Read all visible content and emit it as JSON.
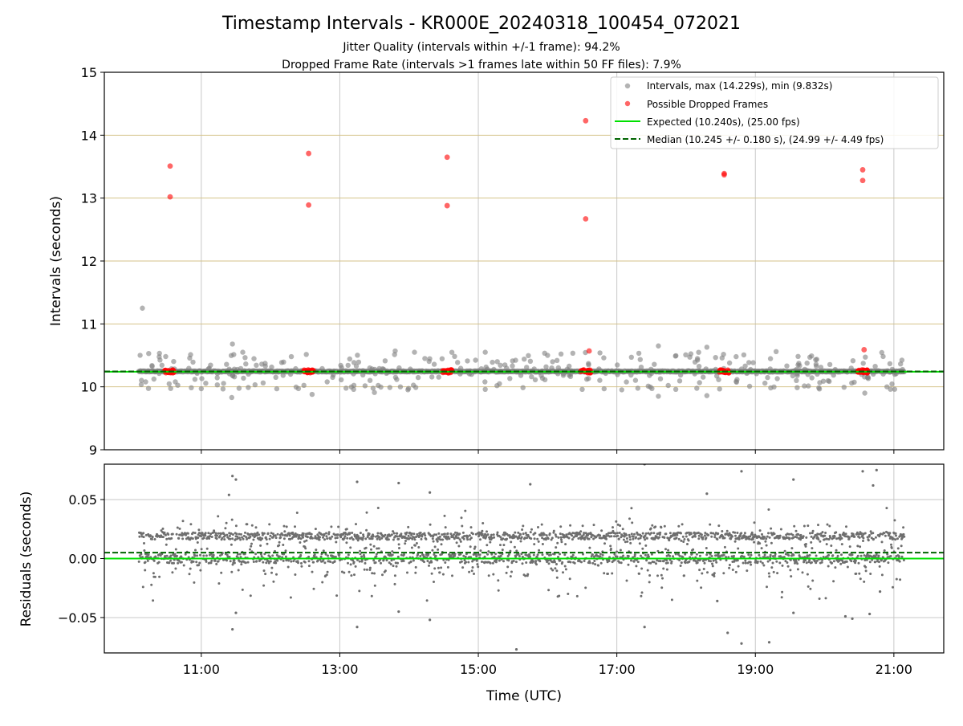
{
  "title": "Timestamp Intervals - KR000E_20240318_100454_072021",
  "subtitle_lines": [
    "Jitter Quality (intervals within +/-1 frame): 94.2%",
    "Dropped Frame Rate (intervals >1 frames late within 50 FF files): 7.9%"
  ],
  "colors": {
    "intervals": "#808080",
    "dropped": "#ff0000",
    "expected": "#00e000",
    "median": "#006400",
    "hgrid_top": "#d4c28a",
    "vgrid": "#c8c8c8",
    "residual_points": "#6e6e6e"
  },
  "chart_data": [
    {
      "type": "scatter",
      "ylabel": "Intervals (seconds)",
      "ylim": [
        9,
        15
      ],
      "yticks": [
        "9",
        "10",
        "11",
        "12",
        "13",
        "14",
        "15"
      ],
      "x_units": "hours UTC",
      "xlim": [
        9.6,
        21.72
      ],
      "legend_placement": "top-right",
      "legend": [
        "Intervals, max (14.229s), min (9.832s)",
        "Possible Dropped Frames",
        "Expected (10.240s), (25.00 fps)",
        "Median (10.245 +/- 0.180 s), (24.99 +/- 4.49 fps)"
      ],
      "expected_value": 10.24,
      "median_value": 10.245,
      "dropped_outliers": [
        {
          "x": 10.55,
          "y": 13.51
        },
        {
          "x": 10.55,
          "y": 13.02
        },
        {
          "x": 12.55,
          "y": 13.71
        },
        {
          "x": 12.55,
          "y": 12.89
        },
        {
          "x": 14.55,
          "y": 13.65
        },
        {
          "x": 14.55,
          "y": 12.88
        },
        {
          "x": 16.55,
          "y": 14.23
        },
        {
          "x": 16.55,
          "y": 12.67
        },
        {
          "x": 18.55,
          "y": 13.39
        },
        {
          "x": 18.55,
          "y": 13.37
        },
        {
          "x": 20.55,
          "y": 13.45
        },
        {
          "x": 20.55,
          "y": 13.28
        },
        {
          "x": 16.6,
          "y": 10.57
        },
        {
          "x": 20.57,
          "y": 10.59
        }
      ],
      "dropped_clusters": [
        10.47,
        12.48,
        14.48,
        16.48,
        18.48,
        20.48
      ],
      "interval_outliers": [
        {
          "x": 10.15,
          "y": 11.25
        },
        {
          "x": 11.45,
          "y": 10.68
        },
        {
          "x": 11.44,
          "y": 9.83
        },
        {
          "x": 13.8,
          "y": 10.57
        },
        {
          "x": 17.6,
          "y": 10.65
        },
        {
          "x": 18.3,
          "y": 10.63
        },
        {
          "x": 18.3,
          "y": 9.86
        },
        {
          "x": 13.2,
          "y": 9.96
        },
        {
          "x": 13.5,
          "y": 9.91
        },
        {
          "x": 17.6,
          "y": 9.85
        },
        {
          "x": 20.58,
          "y": 9.9
        },
        {
          "x": 15.1,
          "y": 10.55
        },
        {
          "x": 20.9,
          "y": 10.0
        },
        {
          "x": 12.3,
          "y": 10.48
        },
        {
          "x": 12.6,
          "y": 9.88
        },
        {
          "x": 16.0,
          "y": 10.5
        },
        {
          "x": 19.3,
          "y": 10.56
        },
        {
          "x": 11.0,
          "y": 9.97
        },
        {
          "x": 15.1,
          "y": 9.96
        },
        {
          "x": 16.5,
          "y": 9.96
        }
      ],
      "interval_time_range": [
        10.1,
        21.15
      ],
      "interval_band": [
        9.95,
        10.55
      ]
    },
    {
      "type": "scatter",
      "xlabel": "Time (UTC)",
      "ylabel": "Residuals (seconds)",
      "ylim": [
        -0.08,
        0.08
      ],
      "yticks": [
        "0.05",
        "0.00",
        "−0.05"
      ],
      "xticks": [
        "11:00",
        "13:00",
        "15:00",
        "17:00",
        "19:00",
        "21:00"
      ],
      "expected_residual": 0.0,
      "median_residual": 0.005,
      "residual_time_range": [
        10.1,
        21.15
      ],
      "residual_outliers": [
        {
          "x": 11.45,
          "y": 0.07
        },
        {
          "x": 11.5,
          "y": 0.067
        },
        {
          "x": 11.4,
          "y": 0.054
        },
        {
          "x": 13.25,
          "y": 0.065
        },
        {
          "x": 13.85,
          "y": 0.064
        },
        {
          "x": 14.3,
          "y": 0.056
        },
        {
          "x": 15.75,
          "y": 0.063
        },
        {
          "x": 17.4,
          "y": 0.08
        },
        {
          "x": 18.3,
          "y": 0.055
        },
        {
          "x": 18.8,
          "y": 0.074
        },
        {
          "x": 19.55,
          "y": 0.067
        },
        {
          "x": 20.55,
          "y": 0.074
        },
        {
          "x": 20.75,
          "y": 0.075
        },
        {
          "x": 20.7,
          "y": 0.062
        },
        {
          "x": 11.45,
          "y": -0.06
        },
        {
          "x": 11.5,
          "y": -0.046
        },
        {
          "x": 13.25,
          "y": -0.058
        },
        {
          "x": 13.85,
          "y": -0.045
        },
        {
          "x": 14.3,
          "y": -0.052
        },
        {
          "x": 15.55,
          "y": -0.077
        },
        {
          "x": 17.4,
          "y": -0.058
        },
        {
          "x": 18.6,
          "y": -0.063
        },
        {
          "x": 18.8,
          "y": -0.072
        },
        {
          "x": 19.2,
          "y": -0.071
        },
        {
          "x": 19.55,
          "y": -0.046
        },
        {
          "x": 20.3,
          "y": -0.049
        },
        {
          "x": 20.4,
          "y": -0.051
        },
        {
          "x": 20.65,
          "y": -0.047
        },
        {
          "x": 20.8,
          "y": -0.028
        },
        {
          "x": 18.45,
          "y": -0.036
        }
      ]
    }
  ]
}
